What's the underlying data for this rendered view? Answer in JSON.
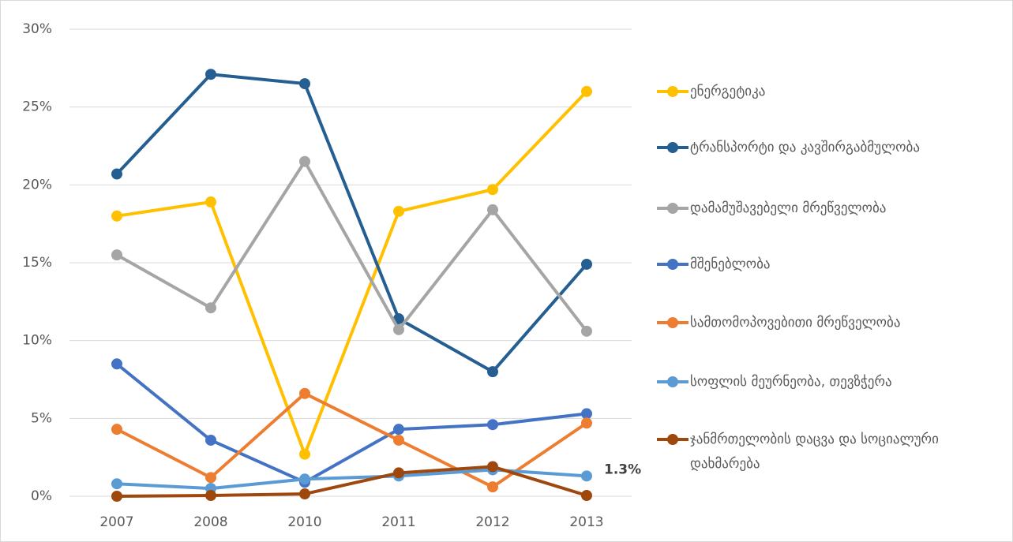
{
  "chart_data": {
    "type": "line",
    "categories": [
      "2007",
      "2008",
      "2010",
      "2011",
      "2012",
      "2013"
    ],
    "series": [
      {
        "name": "ენერგეტიკა",
        "color": "#ffc000",
        "values": [
          18.0,
          18.9,
          2.7,
          18.3,
          19.7,
          26.0
        ]
      },
      {
        "name": "ტრანსპორტი და კავშირგაბმულობა",
        "color": "#255e91",
        "values": [
          20.7,
          27.1,
          26.5,
          11.4,
          8.0,
          14.9
        ]
      },
      {
        "name": "დამამუშავებელი მრეწველობა",
        "color": "#a5a5a5",
        "values": [
          15.5,
          12.1,
          21.5,
          10.7,
          18.4,
          10.6
        ]
      },
      {
        "name": "მშენებლობა",
        "color": "#4472c4",
        "values": [
          8.5,
          3.6,
          0.9,
          4.3,
          4.6,
          5.3
        ]
      },
      {
        "name": "სამთომოპოვებითი მრეწველობა",
        "color": "#ed7d31",
        "values": [
          4.3,
          1.2,
          6.6,
          3.6,
          0.6,
          4.7
        ]
      },
      {
        "name": "სოფლის მეურნეობა, თევზჭერა",
        "color": "#5b9bd5",
        "values": [
          0.8,
          0.5,
          1.1,
          1.3,
          1.7,
          1.3
        ],
        "value_labels": [
          null,
          null,
          null,
          null,
          null,
          "1.3%"
        ]
      },
      {
        "name": "ჯანმრთელობის დაცვა და სოციალური დახმარება",
        "color": "#9e480e",
        "values": [
          0,
          0.05,
          0.15,
          1.5,
          1.9,
          0.05
        ]
      }
    ],
    "ylim": [
      0,
      30
    ],
    "yticks": [
      {
        "value": 0,
        "label": "0%"
      },
      {
        "value": 5,
        "label": "5%"
      },
      {
        "value": 10,
        "label": "10%"
      },
      {
        "value": 15,
        "label": "15%"
      },
      {
        "value": 20,
        "label": "20%"
      },
      {
        "value": 25,
        "label": "25%"
      },
      {
        "value": 30,
        "label": "30%"
      }
    ],
    "grid": true,
    "legend": "right"
  }
}
